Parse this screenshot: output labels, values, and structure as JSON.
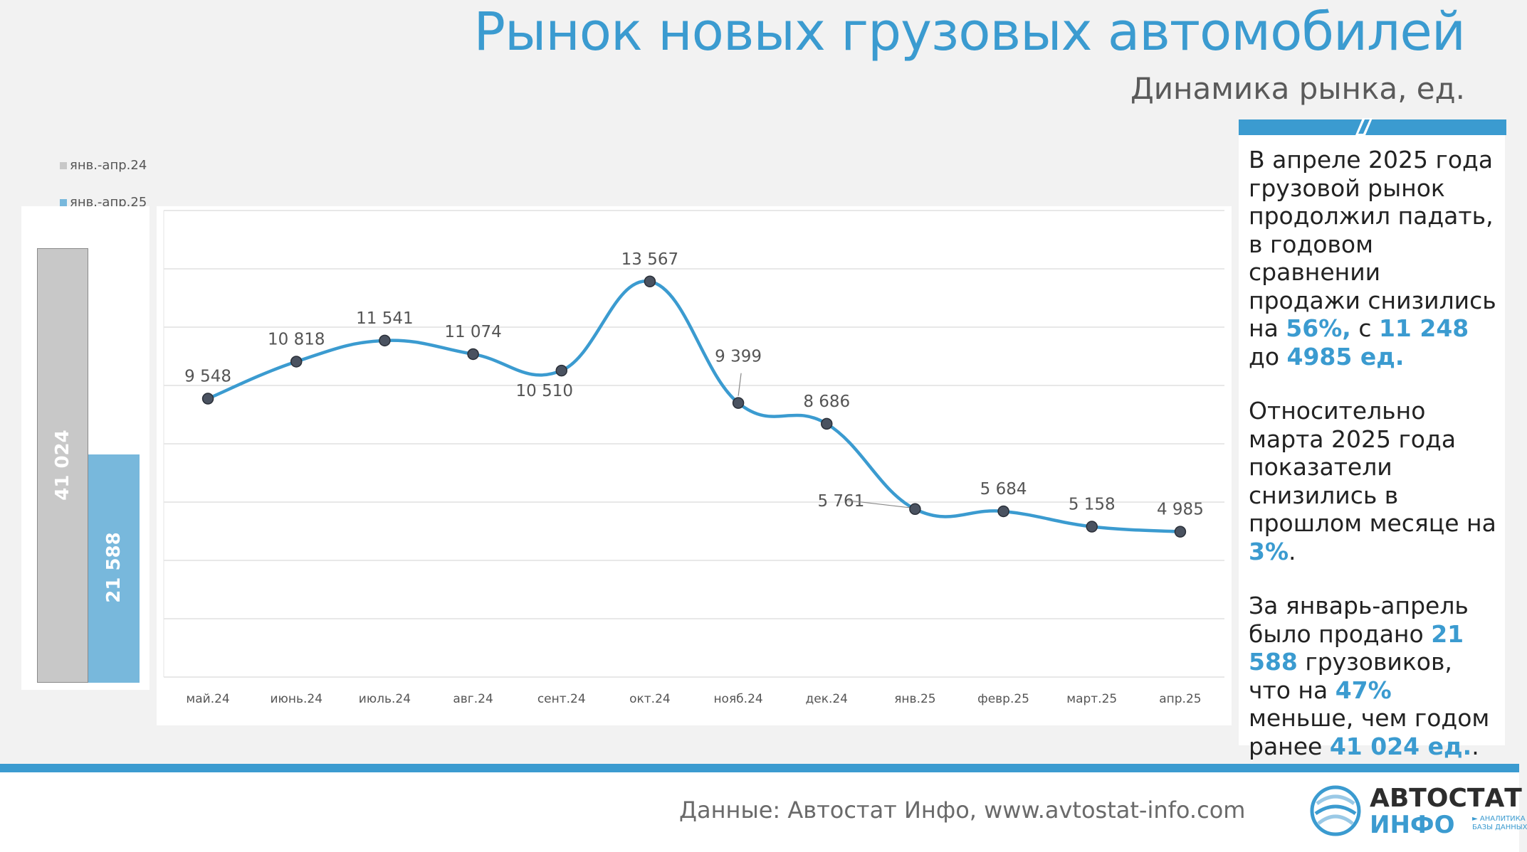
{
  "header": {
    "title": "Рынок новых грузовых автомобилей",
    "subtitle": "Динамика рынка, ед."
  },
  "summary": {
    "legend": [
      {
        "label": "янв.-апр.24",
        "color": "#c8c8c8"
      },
      {
        "label": "янв.-апр.25",
        "color": "#78b8dc"
      }
    ],
    "values": [
      41024,
      21588
    ],
    "value_labels": [
      "41 024",
      "21 588"
    ],
    "ylim": [
      0,
      45000
    ]
  },
  "chart_data": {
    "type": "line",
    "x": [
      "май.24",
      "июнь.24",
      "июль.24",
      "авг.24",
      "сент.24",
      "окт.24",
      "нояб.24",
      "дек.24",
      "янв.25",
      "февр.25",
      "март.25",
      "апр.25"
    ],
    "values": [
      9548,
      10818,
      11541,
      11074,
      10510,
      13567,
      9399,
      8686,
      5761,
      5684,
      5158,
      4985
    ],
    "data_labels": [
      "9 548",
      "10 818",
      "11 541",
      "11 074",
      "10 510",
      "13 567",
      "9 399",
      "8 686",
      "5 761",
      "5 684",
      "5 158",
      "4 985"
    ],
    "title": "",
    "xlabel": "",
    "ylabel": "",
    "ylim": [
      0,
      16000
    ],
    "grid": true,
    "line_color": "#3b9bd0",
    "marker_color": "#4a5260"
  },
  "panel": {
    "p1": [
      "В апреле 2025 года грузовой рынок продолжил падать, в годовом сравнении продажи снизились на ",
      "56%,",
      " с ",
      "11 248",
      " до ",
      "4985 ед."
    ],
    "p2": [
      "Относительно марта 2025 года показатели снизились в прошлом месяце на ",
      "3%",
      "."
    ],
    "p3": [
      "За январь-апрель было продано ",
      "21 588",
      " грузовиков, что на ",
      "47%",
      " меньше, чем годом ранее ",
      "41 024 ед.",
      "."
    ]
  },
  "footer": {
    "source": "Данные: Автостат Инфо, www.avtostat-info.com",
    "logo_top": "АВТОСТАТ",
    "logo_bottom": "ИНФО",
    "logo_tag_1": "► АНАЛИТИКА",
    "logo_tag_2": "БАЗЫ ДАННЫХ"
  }
}
